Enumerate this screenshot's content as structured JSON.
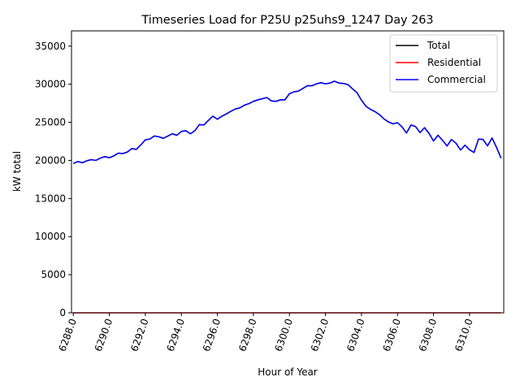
{
  "chart_data": {
    "type": "line",
    "title": "Timeseries Load for P25U p25uhs9_1247  Day 263",
    "xlabel": "Hour of Year",
    "ylabel": "kW total",
    "xlim": [
      6287.9,
      6311.9
    ],
    "ylim": [
      0,
      37000
    ],
    "xticks": [
      6288,
      6290,
      6292,
      6294,
      6296,
      6298,
      6300,
      6302,
      6304,
      6306,
      6308,
      6310
    ],
    "xtick_labels": [
      "6288.0",
      "6290.0",
      "6292.0",
      "6294.0",
      "6296.0",
      "6298.0",
      "6300.0",
      "6302.0",
      "6304.0",
      "6306.0",
      "6308.0",
      "6310.0"
    ],
    "yticks": [
      0,
      5000,
      10000,
      15000,
      20000,
      25000,
      30000,
      35000
    ],
    "ytick_labels": [
      "0",
      "5000",
      "10000",
      "15000",
      "20000",
      "25000",
      "30000",
      "35000"
    ],
    "legend_position": "top-right",
    "x_start": 6288.0,
    "x_step": 0.25,
    "series": [
      {
        "name": "Total",
        "color": "#000000",
        "values": [
          19600,
          19850,
          19700,
          19950,
          20100,
          20000,
          20300,
          20500,
          20350,
          20600,
          20950,
          20900,
          21100,
          21550,
          21450,
          22050,
          22700,
          22800,
          23200,
          23100,
          22900,
          23200,
          23500,
          23300,
          23800,
          23900,
          23500,
          23900,
          24700,
          24650,
          25250,
          25800,
          25400,
          25800,
          26100,
          26450,
          26750,
          26900,
          27250,
          27450,
          27750,
          27950,
          28100,
          28250,
          27800,
          27750,
          27950,
          27950,
          28750,
          29000,
          29100,
          29450,
          29800,
          29800,
          30050,
          30200,
          30050,
          30150,
          30400,
          30150,
          30100,
          29950,
          29400,
          28900,
          27900,
          27100,
          26700,
          26400,
          26000,
          25450,
          25050,
          24800,
          24950,
          24400,
          23600,
          24650,
          24450,
          23650,
          24300,
          23550,
          22550,
          23300,
          22650,
          21900,
          22750,
          22250,
          21350,
          22000,
          21400,
          21050,
          22800,
          22750,
          21900,
          22950,
          21700,
          20300
        ]
      },
      {
        "name": "Residential",
        "color": "#ff0000",
        "values": [
          0,
          0
        ]
      },
      {
        "name": "Commercial",
        "color": "#0000ff",
        "values": [
          19600,
          19850,
          19700,
          19950,
          20100,
          20000,
          20300,
          20500,
          20350,
          20600,
          20950,
          20900,
          21100,
          21550,
          21450,
          22050,
          22700,
          22800,
          23200,
          23100,
          22900,
          23200,
          23500,
          23300,
          23800,
          23900,
          23500,
          23900,
          24700,
          24650,
          25250,
          25800,
          25400,
          25800,
          26100,
          26450,
          26750,
          26900,
          27250,
          27450,
          27750,
          27950,
          28100,
          28250,
          27800,
          27750,
          27950,
          27950,
          28750,
          29000,
          29100,
          29450,
          29800,
          29800,
          30050,
          30200,
          30050,
          30150,
          30400,
          30150,
          30100,
          29950,
          29400,
          28900,
          27900,
          27100,
          26700,
          26400,
          26000,
          25450,
          25050,
          24800,
          24950,
          24400,
          23600,
          24650,
          24450,
          23650,
          24300,
          23550,
          22550,
          23300,
          22650,
          21900,
          22750,
          22250,
          21350,
          22000,
          21400,
          21050,
          22800,
          22750,
          21900,
          22950,
          21700,
          20300
        ]
      }
    ]
  }
}
